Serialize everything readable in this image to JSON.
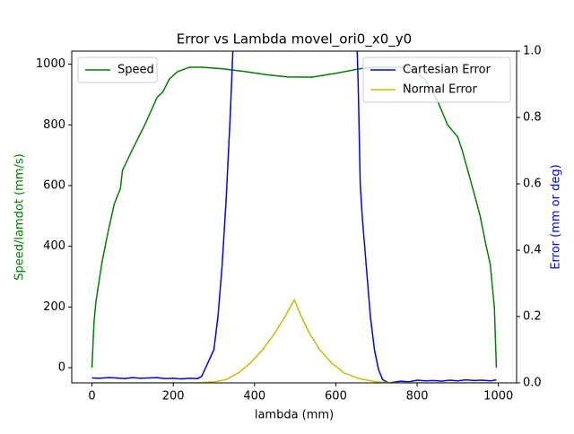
{
  "chart_data": {
    "type": "line",
    "title": "Error vs Lambda movel_ori0_x0_y0",
    "xlabel": "lambda (mm)",
    "ylabel": "Speed/lamdot (mm/s)",
    "y2label": "Error (mm or deg)",
    "xlim": [
      -49.75,
      1044.75
    ],
    "xticks": [
      0,
      200,
      400,
      600,
      800,
      1000
    ],
    "ylim": [
      -50,
      1043
    ],
    "yticks": [
      0,
      200,
      400,
      600,
      800,
      1000
    ],
    "y2lim": [
      0,
      1
    ],
    "y2ticks": [
      {
        "value": 0,
        "label": "0.0"
      },
      0.2,
      0.4,
      0.6,
      0.8,
      {
        "value": 1,
        "label": "1.0"
      }
    ],
    "legend": {
      "y": "upper left",
      "y2": "upper right"
    },
    "series": [
      {
        "name": "Speed",
        "color": "#008000",
        "axis": "y",
        "x": [
          0,
          5,
          10,
          25,
          40,
          55,
          70,
          75,
          100,
          130,
          160,
          175,
          190,
          210,
          240,
          270,
          320,
          380,
          430,
          480,
          540,
          600,
          660,
          700,
          780,
          820,
          850,
          875,
          900,
          910,
          935,
          955,
          970,
          980,
          990,
          995
        ],
        "values": [
          0,
          150,
          220,
          350,
          450,
          540,
          590,
          650,
          720,
          800,
          890,
          910,
          950,
          975,
          990,
          990,
          985,
          975,
          965,
          958,
          957,
          970,
          985,
          990,
          990,
          950,
          880,
          800,
          760,
          720,
          600,
          500,
          400,
          340,
          200,
          0
        ]
      },
      {
        "name": "Cartesian Error",
        "color": "#0000ff",
        "axis": "y2",
        "x": [
          0,
          20,
          40,
          60,
          80,
          100,
          120,
          140,
          160,
          180,
          200,
          220,
          240,
          260,
          270,
          285,
          300,
          310,
          320,
          330,
          340,
          350,
          500,
          650,
          655,
          660,
          665,
          675,
          685,
          695,
          705,
          715,
          730,
          760,
          780,
          800,
          820,
          840,
          860,
          880,
          900,
          920,
          940,
          960,
          980,
          995
        ],
        "values": [
          0.015,
          0.014,
          0.016,
          0.015,
          0.013,
          0.016,
          0.014,
          0.015,
          0.016,
          0.013,
          0.014,
          0.012,
          0.014,
          0.013,
          0.02,
          0.06,
          0.1,
          0.2,
          0.35,
          0.55,
          0.8,
          1.1,
          null,
          1.1,
          0.9,
          0.6,
          0.5,
          0.35,
          0.2,
          0.1,
          0.04,
          0.01,
          0.0,
          0.005,
          0.003,
          0.008,
          0.006,
          0.007,
          0.005,
          0.008,
          0.006,
          0.009,
          0.007,
          0.008,
          0.006,
          0.009
        ]
      },
      {
        "name": "Normal Error",
        "color": "#bfbf00",
        "axis": "y2",
        "x": [
          0,
          260,
          300,
          330,
          360,
          390,
          420,
          450,
          475,
          498,
          515,
          535,
          560,
          590,
          620,
          660,
          700,
          740,
          995
        ],
        "values": [
          0,
          0,
          0.003,
          0.01,
          0.03,
          0.06,
          0.1,
          0.15,
          0.2,
          0.25,
          0.2,
          0.15,
          0.1,
          0.06,
          0.03,
          0.012,
          0.003,
          0,
          0
        ]
      }
    ]
  }
}
